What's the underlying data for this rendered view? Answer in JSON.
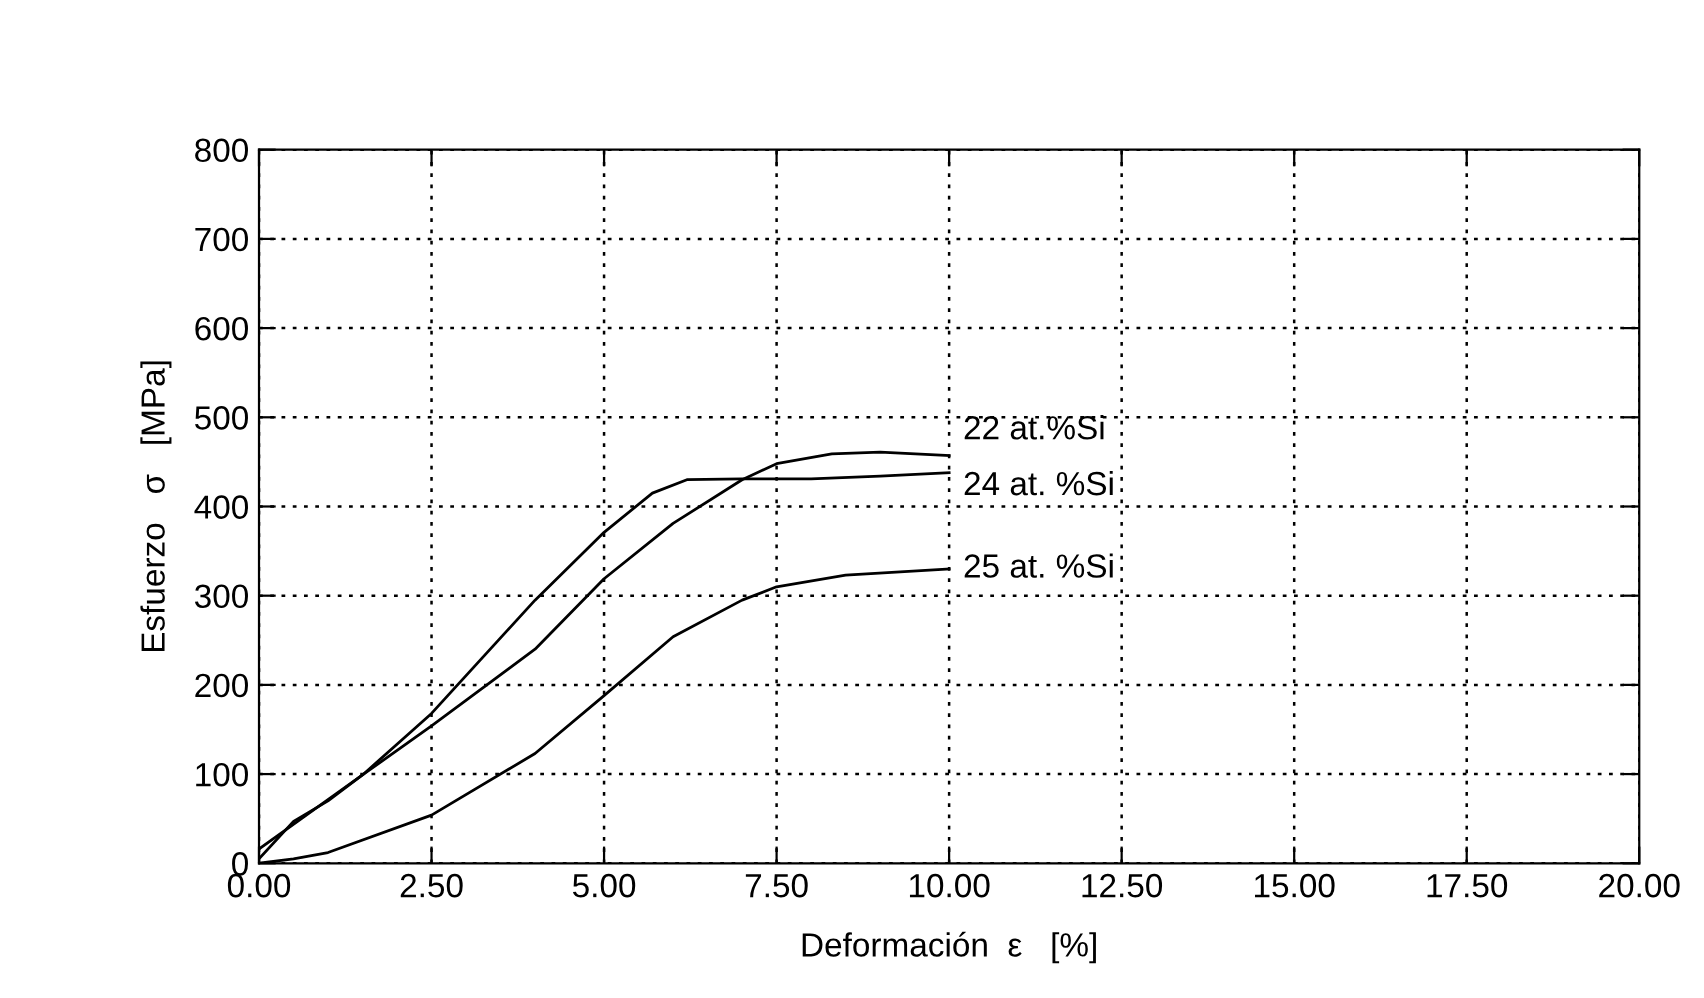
{
  "chart_data": {
    "type": "line",
    "xlabel": "Deformación  ε   [%]",
    "ylabel": "Esfuerzo   σ   [MPa]",
    "xlim": [
      0,
      20
    ],
    "ylim": [
      0,
      800
    ],
    "xticks": [
      {
        "value": 0,
        "label": "0.00"
      },
      {
        "value": 2.5,
        "label": "2.50"
      },
      {
        "value": 5,
        "label": "5.00"
      },
      {
        "value": 7.5,
        "label": "7.50"
      },
      {
        "value": 10,
        "label": "10.00"
      },
      {
        "value": 12.5,
        "label": "12.50"
      },
      {
        "value": 15,
        "label": "15.00"
      },
      {
        "value": 17.5,
        "label": "17.50"
      },
      {
        "value": 20,
        "label": "20.00"
      }
    ],
    "yticks": [
      0,
      100,
      200,
      300,
      400,
      500,
      600,
      700,
      800
    ],
    "grid": true,
    "line_style": "solid",
    "marker": "none",
    "legend": false,
    "series": [
      {
        "name": "22 at.%Si",
        "color": "#000000",
        "x": [
          0,
          0.5,
          1,
          1.5,
          2.5,
          4,
          5,
          6,
          7,
          7.5,
          8.3,
          9,
          10
        ],
        "values": [
          5,
          47,
          70,
          99,
          154,
          240,
          319,
          381,
          430,
          448,
          459,
          461,
          457
        ]
      },
      {
        "name": "24 at. %Si",
        "color": "#000000",
        "x": [
          0,
          1.5,
          2.5,
          4,
          5,
          5.7,
          6.2,
          7,
          8,
          9,
          10
        ],
        "values": [
          16,
          99,
          168,
          295,
          371,
          415,
          430,
          431,
          431,
          434,
          438
        ]
      },
      {
        "name": "25 at. %Si",
        "color": "#000000",
        "x": [
          0,
          0.5,
          1,
          2.5,
          4,
          5,
          6,
          7,
          7.5,
          8.5,
          10
        ],
        "values": [
          0,
          5,
          12,
          54,
          123,
          188,
          254,
          295,
          310,
          323,
          330
        ]
      }
    ]
  }
}
